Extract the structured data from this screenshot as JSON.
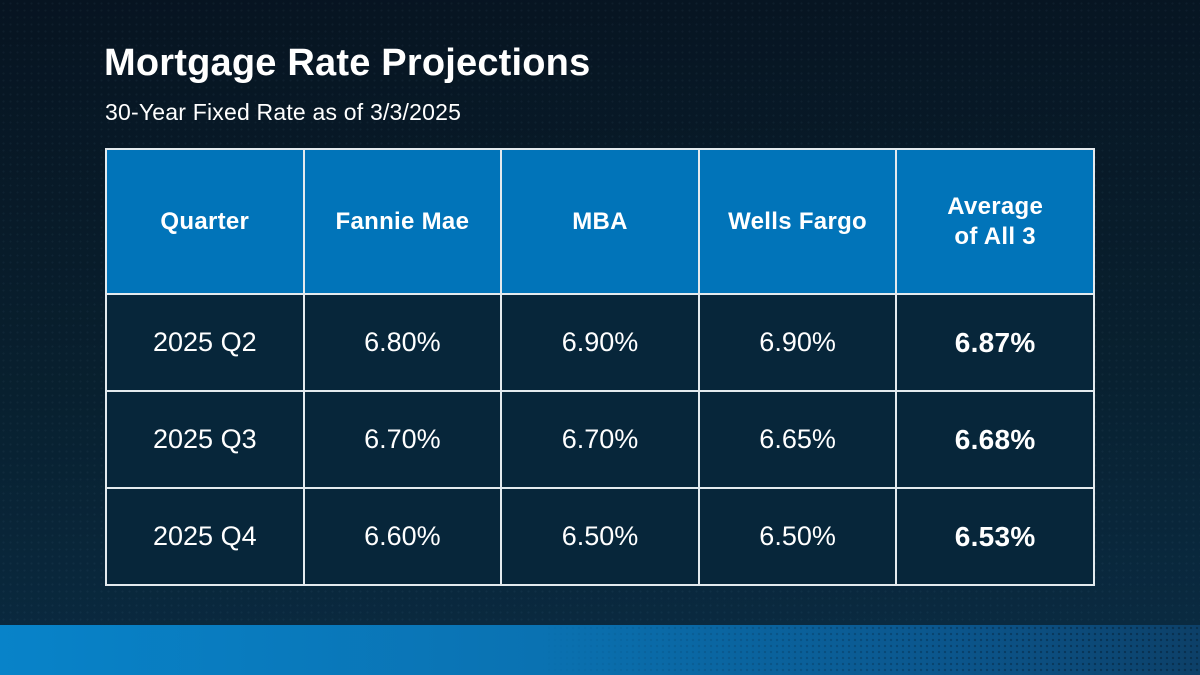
{
  "header": {
    "title": "Mortgage Rate Projections",
    "subtitle": "30-Year Fixed Rate as of 3/3/2025"
  },
  "chart_data": {
    "type": "table",
    "title": "Mortgage Rate Projections",
    "subtitle": "30-Year Fixed Rate as of 3/3/2025",
    "columns": [
      "Quarter",
      "Fannie Mae",
      "MBA",
      "Wells Fargo",
      "Average of All 3"
    ],
    "rows": [
      [
        "2025 Q2",
        "6.80%",
        "6.90%",
        "6.90%",
        "6.87%"
      ],
      [
        "2025 Q3",
        "6.70%",
        "6.70%",
        "6.65%",
        "6.68%"
      ],
      [
        "2025 Q4",
        "6.60%",
        "6.50%",
        "6.50%",
        "6.53%"
      ]
    ]
  },
  "table_display": {
    "headers": [
      "Quarter",
      "Fannie Mae",
      "MBA",
      "Wells Fargo",
      "Average\nof All 3"
    ]
  },
  "colors": {
    "page_background_top": "#071421",
    "page_background_bottom": "#0a2c44",
    "header_blue": "#0174b9",
    "cell_background": "#07263a",
    "table_border": "#e3eaee",
    "accent_stripe_left": "#0883c9",
    "accent_stripe_right": "#0d4068",
    "text": "#ffffff"
  }
}
